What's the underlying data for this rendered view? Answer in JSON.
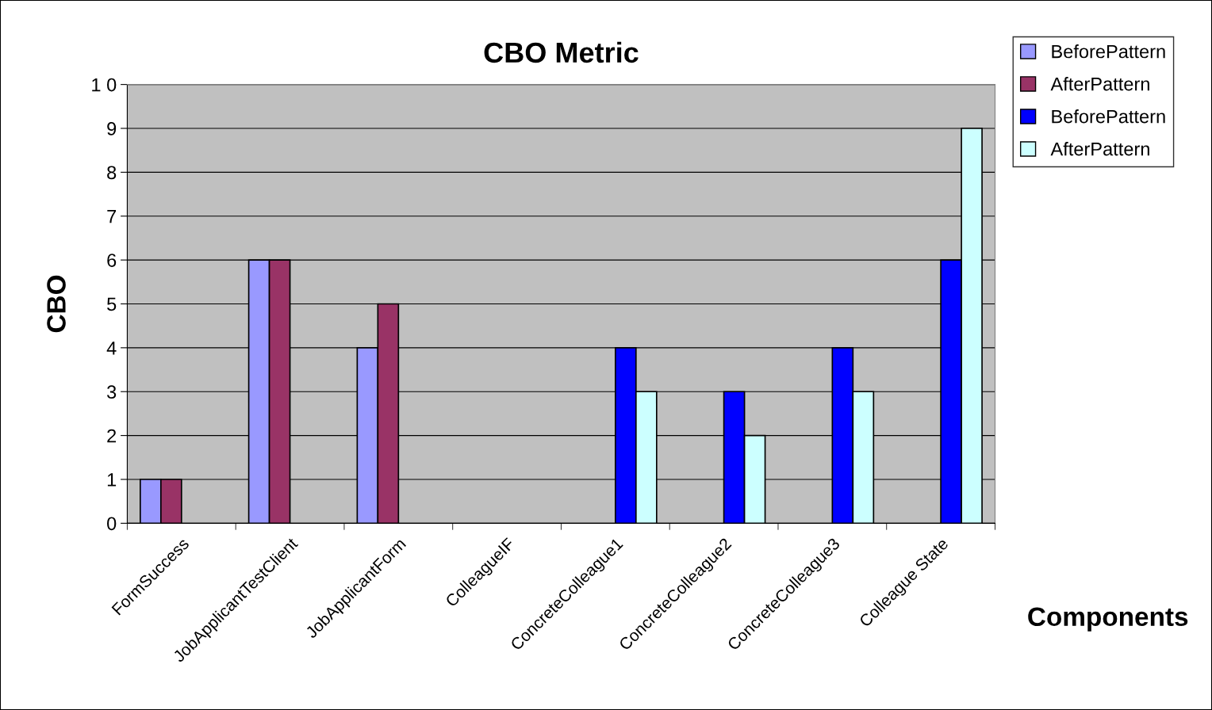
{
  "chart_data": {
    "type": "bar",
    "title": "CBO Metric",
    "xlabel": "Components",
    "ylabel": "CBO",
    "categories": [
      "FormSuccess",
      "JobApplicantTestClient",
      "JobApplicantForm",
      "ColleagueIF",
      "ConcreteColleague1",
      "ConcreteColleague2",
      "ConcreteColleague3",
      "Colleague State"
    ],
    "series": [
      {
        "name": "BeforePattern",
        "color": "#9999ff",
        "values": [
          1,
          6,
          4,
          null,
          null,
          null,
          null,
          null
        ]
      },
      {
        "name": "AfterPattern",
        "color": "#993366",
        "values": [
          1,
          6,
          5,
          null,
          null,
          null,
          null,
          null
        ]
      },
      {
        "name": "BeforePattern",
        "color": "#0000ff",
        "values": [
          null,
          null,
          null,
          null,
          4,
          3,
          4,
          6
        ]
      },
      {
        "name": "AfterPattern",
        "color": "#ccffff",
        "values": [
          null,
          null,
          null,
          null,
          3,
          2,
          3,
          9
        ]
      }
    ],
    "ylim": [
      0,
      10
    ],
    "yticks": [
      0,
      1,
      2,
      3,
      4,
      5,
      6,
      7,
      8,
      9,
      {
        "value": 10,
        "label": "1 0"
      }
    ],
    "grid": "y",
    "legend": "top right"
  }
}
